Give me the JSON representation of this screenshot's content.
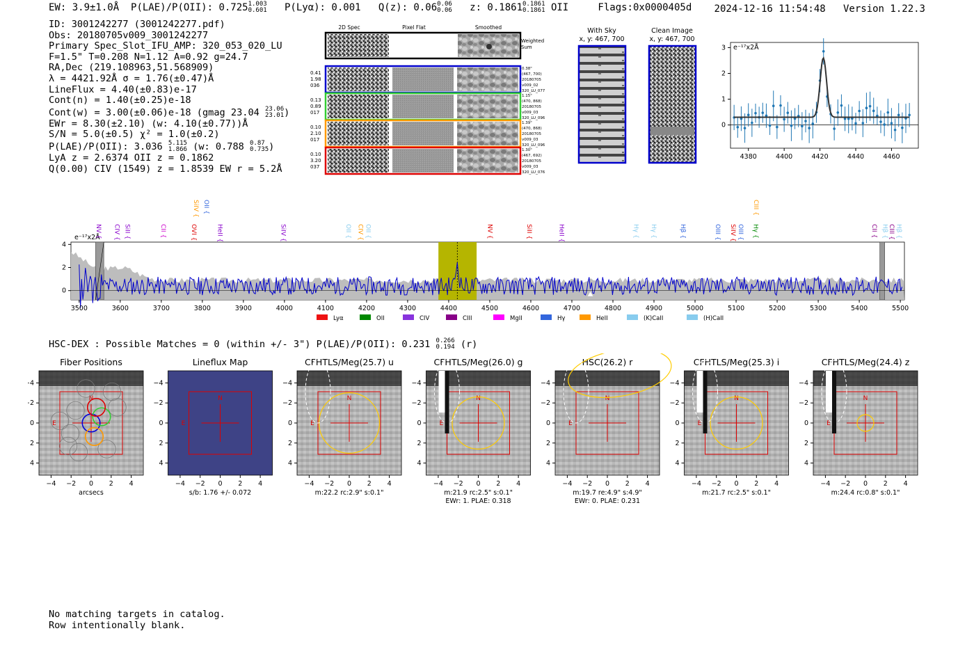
{
  "header": {
    "left_ew": "EW: 3.9±1.0Å",
    "left_plae": "P(LAE)/P(OII): 0.725",
    "plae_hi": "1.003",
    "plae_lo": "0.601",
    "plya": "P(Lyα): 0.001",
    "qz": "Q(z): 0.06",
    "qz_hi": "0.06",
    "qz_lo": "0.06",
    "z": "z: 0.1861",
    "z_hi": "0.1861",
    "z_lo": "0.1861",
    "z_line": "OII",
    "flags": "Flags:0x0000405d",
    "datetime": "2024-12-16 11:54:48",
    "version": "Version 1.22.3"
  },
  "info": {
    "id": "ID: 3001242277 (3001242277.pdf)",
    "obs": "Obs: 20180705v009_3001242277",
    "primary": "Primary Spec_Slot_IFU_AMP: 320_053_020_LU",
    "params": "F=1.5\"  T=0.208  N=1.12  A=0.92  g=24.7",
    "radec": "RA,Dec (219.108963,51.568909)",
    "lambda": "λ = 4421.92Å   σ = 1.76(±0.47)Å",
    "lineflux": "LineFlux = 4.40(±0.83)e-17",
    "contn": "Cont(n) = 1.40(±0.25)e-18",
    "contw": "Cont(w) = 3.00(±0.06)e-18 (gmag 23.04",
    "gmag_hi": "23.06",
    "gmag_lo": "23.01",
    "contw_close": ")",
    "ewr": "EWr = 8.30(±2.10) (w: 4.10(±0.77))Å",
    "sn": "S/N = 5.0(±0.5)  χ² = 1.0(±0.2)",
    "plae": "P(LAE)/P(OII): 3.036",
    "plae_hi": "5.115",
    "plae_lo": "1.866",
    "plae_w": "(w: 0.788",
    "plae_w_hi": "0.87",
    "plae_w_lo": "0.735",
    "plae_close": ")",
    "lya": "LyA z = 2.6374  OII z = 0.1862",
    "q": "Q(0.00) CIV (1549) z = 1.8539  EW r = 5.2Å"
  },
  "fiber_panel": {
    "col_headers": [
      "2D Spec",
      "Pixel Flat",
      "Smoothed"
    ],
    "weighted_sum": [
      "Weighted",
      "Sum"
    ],
    "rows": [
      {
        "left": [
          "0.41",
          "1.98",
          "036"
        ],
        "right": [
          "0.38\"",
          "(467, 700)",
          "20180705",
          "v009_02",
          "320_LU_077"
        ],
        "color": "#0000cc"
      },
      {
        "left": [
          "0.13",
          "0.89",
          "017"
        ],
        "right": [
          "1.15\"",
          "(470, 868)",
          "20180705",
          "v009_03",
          "320_LU_096"
        ],
        "color": "#33cc33"
      },
      {
        "left": [
          "0.10",
          "2.10",
          "017"
        ],
        "right": [
          "1.39\"",
          "(470, 868)",
          "20180705",
          "v009_03",
          "320_LU_096"
        ],
        "color": "#ff9900"
      },
      {
        "left": [
          "0.10",
          "3.20",
          "037"
        ],
        "right": [
          "1.30\"",
          "(467, 692)",
          "20180705",
          "v009_03",
          "320_LU_076"
        ],
        "color": "#dd0000"
      }
    ]
  },
  "sky_panel": {
    "with_sky_title": "With Sky",
    "with_sky_coords": "x, y: 467, 700",
    "clean_title": "Clean Image",
    "clean_coords": "x, y: 467, 700"
  },
  "line_fit": {
    "ylabel": "e⁻¹⁷x2Å",
    "xticks": [
      "4380",
      "4400",
      "4420",
      "4440",
      "4460"
    ],
    "yticks": [
      "0",
      "1",
      "2",
      "3"
    ]
  },
  "spectrum": {
    "ylabel": "e⁻¹⁷x2Å",
    "yticks": [
      "0",
      "2",
      "4"
    ],
    "xticks": [
      "3500",
      "3600",
      "3700",
      "3800",
      "3900",
      "4000",
      "4100",
      "4200",
      "4300",
      "4400",
      "4500",
      "4600",
      "4700",
      "4800",
      "4900",
      "5000",
      "5100",
      "5200",
      "5300",
      "5400",
      "5500"
    ],
    "line_labels": [
      {
        "t": "NV",
        "c": "#8800cc"
      },
      {
        "t": "CIV",
        "c": "#8800cc"
      },
      {
        "t": "SiII",
        "c": "#8800cc"
      },
      {
        "t": "CII",
        "c": "#cc00cc"
      },
      {
        "t": "SiIV",
        "c": "#ff9900"
      },
      {
        "t": "OVI",
        "c": "#dd0000"
      },
      {
        "t": "OII",
        "c": "#3366dd"
      },
      {
        "t": "HeII",
        "c": "#8800cc"
      },
      {
        "t": "SiIV",
        "c": "#8800cc"
      },
      {
        "t": "OII",
        "c": "#88ccee"
      },
      {
        "t": "CIV",
        "c": "#ff9900"
      },
      {
        "t": "OII",
        "c": "#88ccee"
      },
      {
        "t": "NV",
        "c": "#dd0000"
      },
      {
        "t": "SiII",
        "c": "#dd0000"
      },
      {
        "t": "HeII",
        "c": "#8800cc"
      },
      {
        "t": "Hγ",
        "c": "#88ccee"
      },
      {
        "t": "Hγ",
        "c": "#88ccee"
      },
      {
        "t": "Hβ",
        "c": "#3366dd"
      },
      {
        "t": "OIII",
        "c": "#3366dd"
      },
      {
        "t": "SiIV",
        "c": "#dd0000"
      },
      {
        "t": "OIII",
        "c": "#3366dd"
      },
      {
        "t": "CIII",
        "c": "#ff9900"
      },
      {
        "t": "Hγ",
        "c": "#008800"
      },
      {
        "t": "CII",
        "c": "#880088"
      },
      {
        "t": "Hβ",
        "c": "#88ccee"
      },
      {
        "t": "CIII",
        "c": "#880088"
      },
      {
        "t": "Hβ",
        "c": "#88ccee"
      }
    ],
    "legend": [
      {
        "label": "Lyα",
        "color": "#ee1111"
      },
      {
        "label": "OII",
        "color": "#008800"
      },
      {
        "label": "CIV",
        "color": "#8833dd"
      },
      {
        "label": "CIII",
        "color": "#880088"
      },
      {
        "label": "MgII",
        "color": "#ff00ff"
      },
      {
        "label": "Hγ",
        "color": "#3366dd"
      },
      {
        "label": "HeII",
        "color": "#ff9900"
      },
      {
        "label": "(K)CaII",
        "color": "#88ccee"
      },
      {
        "label": "(H)CaII",
        "color": "#88ccee"
      }
    ]
  },
  "hsc": {
    "line": "HSC-DEX : Possible Matches = 0 (within +/- 3\")  P(LAE)/P(OII): 0.231",
    "hi": "0.266",
    "lo": "0.194",
    "band": "(r)"
  },
  "cutouts": [
    {
      "title": "Fiber Positions",
      "cap1": "arcsecs",
      "cap2": "",
      "bg": "gray"
    },
    {
      "title": "Lineflux Map",
      "cap1": "s/b: 1.76 +/- 0.072",
      "cap2": "",
      "bg": "blue"
    },
    {
      "title": "CFHTLS/Meg(25.7) u",
      "cap1": "m:22.2 rc:2.9\"  s:0.1\"",
      "cap2": "",
      "bg": "gray"
    },
    {
      "title": "CFHTLS/Meg(26.0) g",
      "cap1": "m:21.9 rc:2.5\"  s:0.1\"",
      "cap2": "EWr: 1, PLAE: 0.318",
      "bg": "gray"
    },
    {
      "title": "HSC(26.2) r",
      "cap1": "m:19.7  re:4.9\"  s:4.9\"",
      "cap2": "EWr: 0, PLAE: 0.231",
      "bg": "gray"
    },
    {
      "title": "CFHTLS/Meg(25.3) i",
      "cap1": "m:21.7 rc:2.5\"  s:0.1\"",
      "cap2": "",
      "bg": "gray"
    },
    {
      "title": "CFHTLS/Meg(24.4) z",
      "cap1": "m:24.4 rc:0.8\"  s:0.1\"",
      "cap2": "",
      "bg": "gray"
    }
  ],
  "cutout_axis": {
    "ticks": [
      "−4",
      "−2",
      "0",
      "2",
      "4"
    ],
    "north": "N",
    "east": "E"
  },
  "footer": {
    "line1": "No matching targets in catalog.",
    "line2": "Row intentionally blank."
  }
}
